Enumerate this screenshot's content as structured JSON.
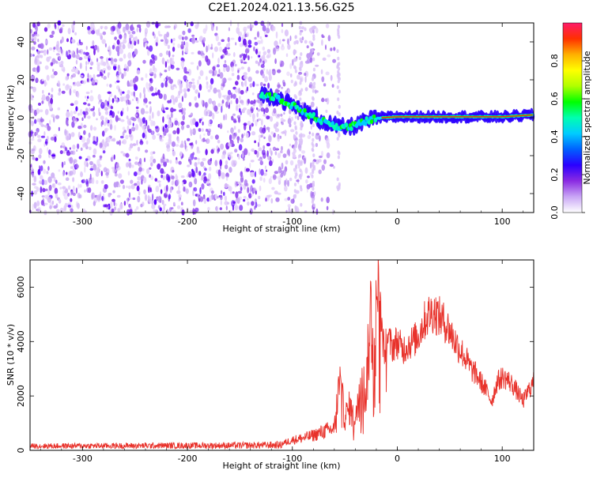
{
  "title": "C2E1.2024.021.13.56.G25",
  "chart_data": [
    {
      "type": "heatmap",
      "xlabel": "Height of straight line (km)",
      "ylabel": "Frequency (Hz)",
      "xlim": [
        -350,
        130
      ],
      "ylim": [
        -50,
        50
      ],
      "x_ticks": [
        -300,
        -200,
        -100,
        0,
        100
      ],
      "y_ticks": [
        -40,
        -20,
        0,
        20,
        40
      ],
      "colorbar": {
        "label": "Normalized spectral amplitude",
        "range": [
          0,
          1
        ],
        "ticks": [
          0.0,
          0.2,
          0.4,
          0.6,
          0.8
        ],
        "colors": [
          "#ffffff",
          "#c9a6f5",
          "#8a2be2",
          "#2a00ff",
          "#0060ff",
          "#00ccff",
          "#00ffb0",
          "#00ff00",
          "#b0ff00",
          "#ffff00",
          "#ffb000",
          "#ff3000",
          "#ff1a6a"
        ]
      },
      "signal_track": {
        "description": "bright band tracing the dominant frequency",
        "x": [
          -130,
          -115,
          -105,
          -95,
          -85,
          -75,
          -65,
          -55,
          -45,
          -35,
          -25,
          -15,
          0,
          50,
          100,
          130
        ],
        "y": [
          12,
          11,
          8,
          5,
          2,
          -1,
          -3,
          -5,
          -5,
          -3,
          -1,
          0,
          0.5,
          0.5,
          0.5,
          1.5
        ]
      },
      "noise_region_x": [
        -350,
        -60
      ],
      "grid": false
    },
    {
      "type": "line",
      "xlabel": "Height of straight line (km)",
      "ylabel": "SNR (10 * v/v)",
      "xlim": [
        -350,
        130
      ],
      "ylim": [
        0,
        7000
      ],
      "x_ticks": [
        -300,
        -200,
        -100,
        0,
        100
      ],
      "y_ticks": [
        0,
        2000,
        4000,
        6000
      ],
      "color": "#e8312a",
      "envelope": {
        "x": [
          -350,
          -250,
          -150,
          -110,
          -100,
          -90,
          -80,
          -70,
          -60,
          -55,
          -50,
          -45,
          -40,
          -35,
          -30,
          -25,
          -22,
          -18,
          -15,
          -12,
          -10,
          -5,
          0,
          5,
          10,
          15,
          20,
          25,
          30,
          35,
          40,
          45,
          50,
          55,
          60,
          65,
          70,
          75,
          80,
          85,
          90,
          95,
          100,
          105,
          110,
          115,
          120,
          125,
          130
        ],
        "y": [
          180,
          200,
          220,
          250,
          380,
          450,
          550,
          700,
          800,
          2500,
          1200,
          1600,
          900,
          2800,
          2000,
          5200,
          3500,
          6400,
          4500,
          3500,
          4200,
          3800,
          4000,
          3700,
          3900,
          4000,
          4200,
          4700,
          5000,
          5100,
          4900,
          4700,
          4400,
          4000,
          3700,
          3400,
          3000,
          2800,
          2500,
          2200,
          1800,
          2500,
          2700,
          2600,
          2400,
          2100,
          1800,
          2200,
          2500
        ]
      },
      "grid": false
    }
  ]
}
